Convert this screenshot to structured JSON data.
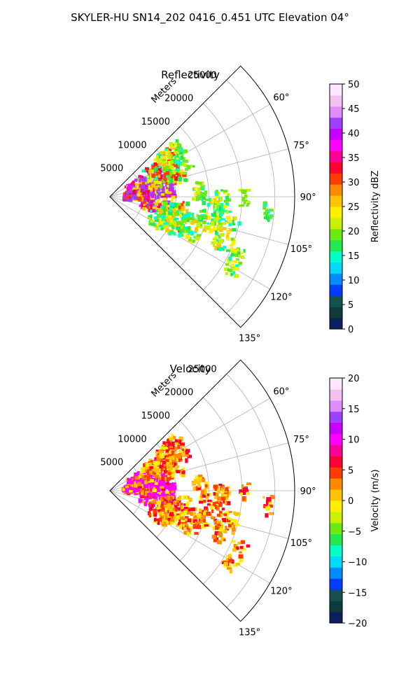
{
  "figure": {
    "title": "SKYLER-HU  SN14_202  0416_0.451 UTC Elevation 04°"
  },
  "chart_data": [
    {
      "type": "heatmap",
      "title": "Reflectivity",
      "theta_ticks": [
        "60°",
        "75°",
        "90°",
        "105°",
        "120°",
        "135°"
      ],
      "r_ticks": [
        "5000",
        "10000",
        "15000",
        "20000",
        "25000"
      ],
      "r_label": "Meters",
      "theta_range_deg": [
        45,
        135
      ],
      "r_range_m": [
        0,
        28000
      ],
      "grid": true,
      "colorbar": {
        "label": "Reflectivity dBZ",
        "range": [
          0,
          50
        ],
        "ticks": [
          "0",
          "5",
          "10",
          "15",
          "20",
          "25",
          "30",
          "35",
          "40",
          "45",
          "50"
        ],
        "colors": [
          "#0b1f5e",
          "#0f3a3a",
          "#14524b",
          "#003cff",
          "#008cff",
          "#00d8ff",
          "#00ffc8",
          "#22e84f",
          "#6ce812",
          "#c8f000",
          "#ffee00",
          "#ffc400",
          "#ff8a00",
          "#ff3c00",
          "#ff0033",
          "#ff0096",
          "#ff00ff",
          "#c800ff",
          "#a040ff",
          "#e08cff",
          "#f4c2f2",
          "#ffe6ff"
        ]
      }
    },
    {
      "type": "heatmap",
      "title": "Velocity",
      "theta_ticks": [
        "60°",
        "75°",
        "90°",
        "105°",
        "120°",
        "135°"
      ],
      "r_ticks": [
        "5000",
        "10000",
        "15000",
        "20000",
        "25000"
      ],
      "r_label": "Meters",
      "theta_range_deg": [
        45,
        135
      ],
      "r_range_m": [
        0,
        28000
      ],
      "grid": true,
      "colorbar": {
        "label": "Velocity (m/s)",
        "range": [
          -20,
          20
        ],
        "ticks": [
          "−20",
          "−15",
          "−10",
          "−5",
          "0",
          "5",
          "10",
          "15",
          "20"
        ],
        "colors": [
          "#0b1f5e",
          "#0f3a3a",
          "#14524b",
          "#003cff",
          "#008cff",
          "#00d8ff",
          "#00ffc8",
          "#22e84f",
          "#6ce812",
          "#c8f000",
          "#ffee00",
          "#ffc400",
          "#ff8a00",
          "#ff3c00",
          "#ff0033",
          "#ff0096",
          "#ff00ff",
          "#c800ff",
          "#a040ff",
          "#e08cff",
          "#f4c2f2",
          "#ffe6ff"
        ]
      }
    }
  ]
}
